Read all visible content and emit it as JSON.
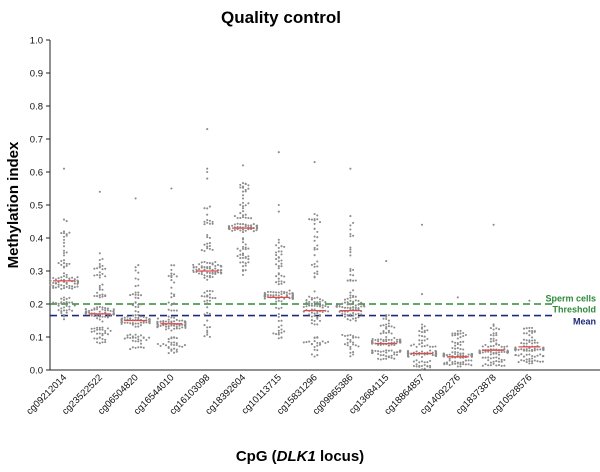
{
  "chart_data": {
    "type": "scatter",
    "title": "Quality control",
    "ylabel": "Methylation index",
    "xlabel_prefix": "CpG (",
    "xlabel_italic": "DLK1",
    "xlabel_suffix": " locus)",
    "ylim": [
      0,
      1.0
    ],
    "yticks": [
      "0.0",
      "0.1",
      "0.2",
      "0.3",
      "0.4",
      "0.5",
      "0.6",
      "0.7",
      "0.8",
      "0.9",
      "1.0"
    ],
    "grid": false,
    "point_color": "#8c8c8c",
    "median_color": "#e04a4a",
    "categories": [
      "cg09212014",
      "cg23522522",
      "cg06504820",
      "cg16544010",
      "cg16103098",
      "cg18392604",
      "cg10113715",
      "cg15831296",
      "cg09865386",
      "cg13684115",
      "cg18864857",
      "cg14092276",
      "cg18373878",
      "cg10528576"
    ],
    "groups": [
      {
        "median": 0.27,
        "q1": 0.22,
        "q3": 0.31,
        "min": 0.15,
        "max": 0.46,
        "outliers": [
          0.61
        ]
      },
      {
        "median": 0.17,
        "q1": 0.13,
        "q3": 0.22,
        "min": 0.08,
        "max": 0.36,
        "outliers": [
          0.54
        ]
      },
      {
        "median": 0.15,
        "q1": 0.11,
        "q3": 0.19,
        "min": 0.06,
        "max": 0.33,
        "outliers": [
          0.52
        ]
      },
      {
        "median": 0.14,
        "q1": 0.1,
        "q3": 0.18,
        "min": 0.05,
        "max": 0.32,
        "outliers": [
          0.55
        ]
      },
      {
        "median": 0.3,
        "q1": 0.24,
        "q3": 0.36,
        "min": 0.1,
        "max": 0.5,
        "outliers": [
          0.58,
          0.6,
          0.61,
          0.73
        ]
      },
      {
        "median": 0.43,
        "q1": 0.4,
        "q3": 0.46,
        "min": 0.28,
        "max": 0.57,
        "outliers": [
          0.62
        ]
      },
      {
        "median": 0.22,
        "q1": 0.19,
        "q3": 0.26,
        "min": 0.09,
        "max": 0.42,
        "outliers": [
          0.48,
          0.5,
          0.66
        ]
      },
      {
        "median": 0.18,
        "q1": 0.1,
        "q3": 0.28,
        "min": 0.04,
        "max": 0.52,
        "outliers": [
          0.63
        ]
      },
      {
        "median": 0.18,
        "q1": 0.11,
        "q3": 0.27,
        "min": 0.04,
        "max": 0.49,
        "outliers": [
          0.61
        ]
      },
      {
        "median": 0.08,
        "q1": 0.06,
        "q3": 0.11,
        "min": 0.03,
        "max": 0.17,
        "outliers": [
          0.33
        ]
      },
      {
        "median": 0.05,
        "q1": 0.03,
        "q3": 0.07,
        "min": 0.0,
        "max": 0.14,
        "outliers": [
          0.23,
          0.44
        ]
      },
      {
        "median": 0.04,
        "q1": 0.03,
        "q3": 0.06,
        "min": 0.01,
        "max": 0.12,
        "outliers": [
          0.22
        ]
      },
      {
        "median": 0.06,
        "q1": 0.04,
        "q3": 0.07,
        "min": 0.01,
        "max": 0.14,
        "outliers": [
          0.2,
          0.44
        ]
      },
      {
        "median": 0.07,
        "q1": 0.05,
        "q3": 0.08,
        "min": 0.02,
        "max": 0.13,
        "outliers": [
          0.21
        ]
      }
    ],
    "reference_lines": [
      {
        "label_lines": [
          "Sperm cells",
          "Threshold"
        ],
        "value": 0.2,
        "color": "#2e8b3a",
        "style": "dashed"
      },
      {
        "label_lines": [
          "Mean"
        ],
        "value": 0.165,
        "color": "#1f2a7a",
        "style": "dashed"
      }
    ]
  }
}
